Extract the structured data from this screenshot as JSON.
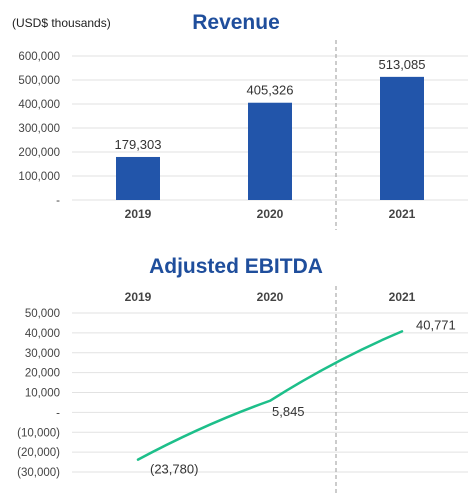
{
  "chart_data": [
    {
      "type": "bar",
      "title": "Revenue",
      "unit_label": "(USD$ thousands)",
      "categories": [
        "2019",
        "2020",
        "2021"
      ],
      "values": [
        179303,
        405326,
        513085
      ],
      "value_labels": [
        "179,303",
        "405,326",
        "513,085"
      ],
      "ylim": [
        0,
        600000
      ],
      "yticks": [
        0,
        100000,
        200000,
        300000,
        400000,
        500000,
        600000
      ],
      "ytick_labels": [
        "-",
        "100,000",
        "200,000",
        "300,000",
        "400,000",
        "500,000",
        "600,000"
      ],
      "bar_color": "#2255aa",
      "grid": true,
      "divider_after_category": "2020"
    },
    {
      "type": "line",
      "title": "Adjusted EBITDA",
      "categories": [
        "2019",
        "2020",
        "2021"
      ],
      "values": [
        -23780,
        5845,
        40771
      ],
      "value_labels": [
        "(23,780)",
        "5,845",
        "40,771"
      ],
      "ylim": [
        -30000,
        50000
      ],
      "yticks": [
        -30000,
        -20000,
        -10000,
        0,
        10000,
        20000,
        30000,
        40000,
        50000
      ],
      "ytick_labels": [
        "(30,000)",
        "(20,000)",
        "(10,000)",
        "-",
        "10,000",
        "20,000",
        "30,000",
        "40,000",
        "50,000"
      ],
      "line_color": "#1dbf8a",
      "grid": true,
      "category_labels_position": "top",
      "divider_after_category": "2020"
    }
  ]
}
